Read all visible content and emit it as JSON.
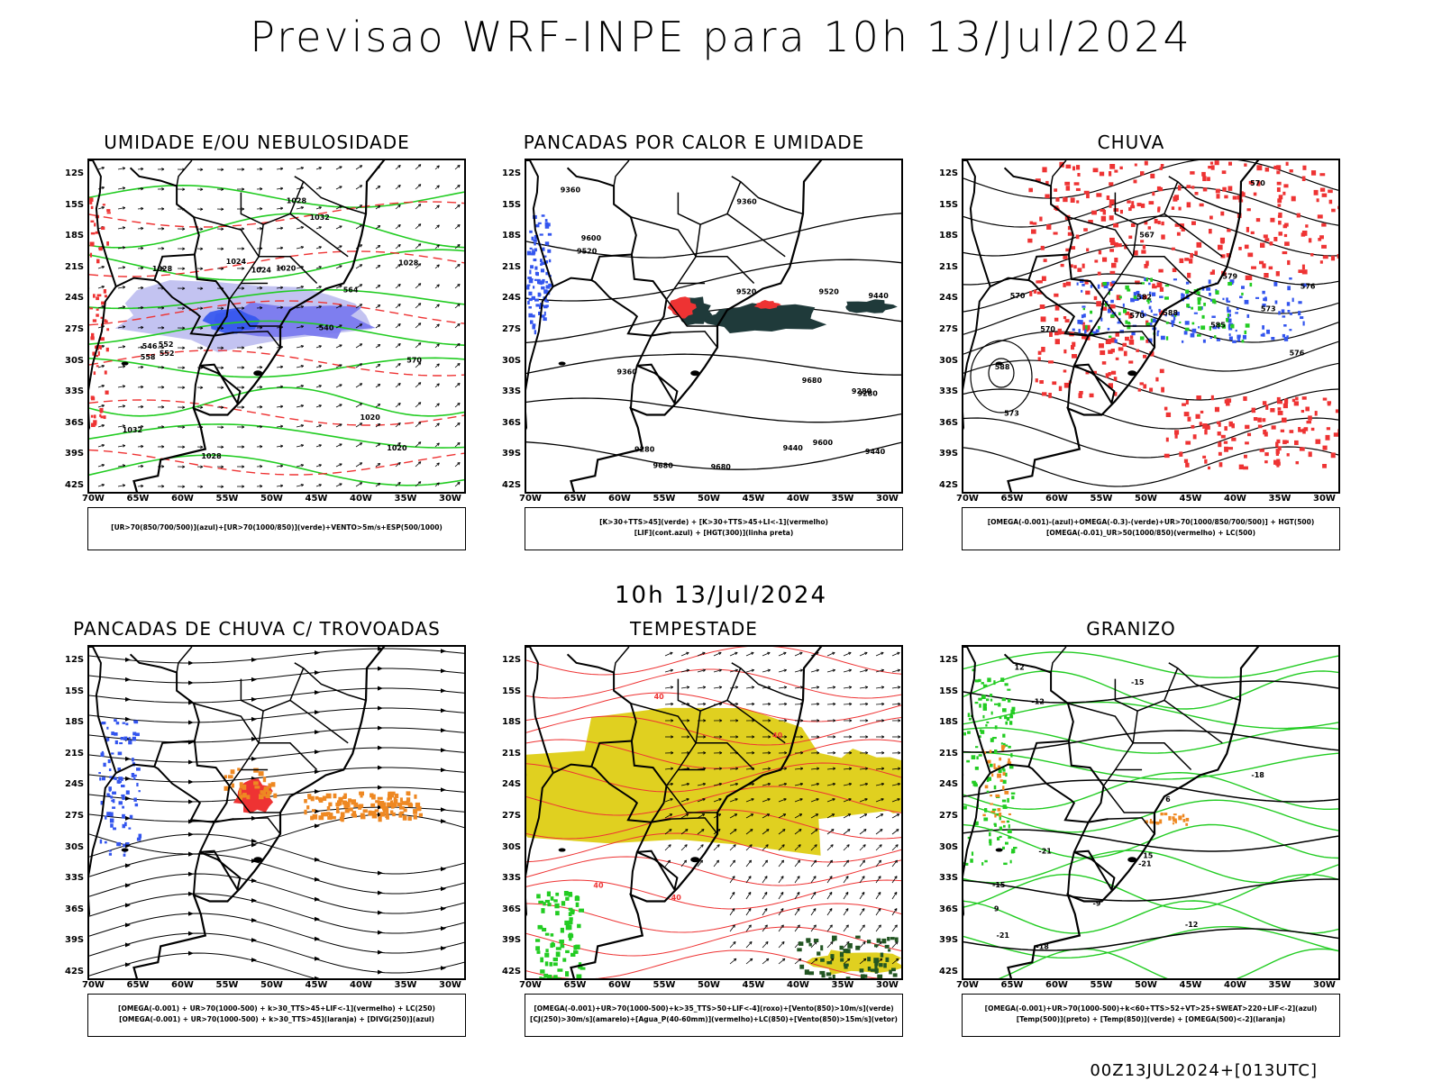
{
  "title": "Previsao WRF-INPE  para 10h 13/Jul/2024",
  "subtitle": "10h 13/Jul/2024",
  "footer": "00Z13JUL2024+[013UTC]",
  "lat_labels": [
    "12S",
    "15S",
    "18S",
    "21S",
    "24S",
    "27S",
    "30S",
    "33S",
    "36S",
    "39S",
    "42S"
  ],
  "lon_labels": [
    "70W",
    "65W",
    "60W",
    "55W",
    "50W",
    "45W",
    "40W",
    "35W",
    "30W"
  ],
  "panels": [
    {
      "title": "UMIDADE E/OU NEBULOSIDADE",
      "legend": [
        "[UR>70(850/700/500)](azul)+[UR>70(1000/850)](verde)+VENTO>5m/s+ESP(500/1000)"
      ],
      "contour_labels": [
        "1024",
        "1020",
        "1020",
        "1028",
        "1032",
        "1024",
        "1028",
        "1032",
        "1028",
        "1028",
        "1020",
        "570",
        "564",
        "558",
        "552",
        "546",
        "540",
        "552"
      ]
    },
    {
      "title": "PANCADAS POR CALOR E UMIDADE",
      "legend": [
        "[K>30+TTS>45](verde) + [K>30+TTS>45+LI<-1](vermelho)",
        "[LIF](cont.azul) + [HGT(300)](linha preta)"
      ],
      "contour_labels": [
        "9680",
        "9680",
        "9600",
        "9680",
        "9520",
        "9600",
        "9520",
        "9440",
        "9360",
        "9440",
        "9520",
        "9280",
        "9360",
        "9440",
        "9360",
        "9280",
        "9280"
      ]
    },
    {
      "title": "CHUVA",
      "legend": [
        "[OMEGA(-0.001)-(azul)+OMEGA(-0.3)-(verde)+UR>70(1000/850/700/500)] + HGT(500)",
        "[OMEGA(-0.01)_UR>50(1000/850)(vermelho) + LC(500)"
      ],
      "contour_labels": [
        "588",
        "588",
        "585",
        "582",
        "576",
        "573",
        "570",
        "567",
        "579",
        "576",
        "573",
        "570",
        "570",
        "570"
      ]
    },
    {
      "title": "PANCADAS DE CHUVA C/ TROVOADAS",
      "legend": [
        "[OMEGA(-0.001) + UR>70(1000-500) + k>30_TTS>45+LIF<-1](vermelho) + LC(250)",
        "[OMEGA(-0.001) + UR>70(1000-500) + k>30_TTS>45](laranja) + [DIVG(250)](azul)"
      ],
      "contour_labels": []
    },
    {
      "title": "TEMPESTADE",
      "legend": [
        "[OMEGA(-0.001)+UR>70(1000-500)+k>35_TTS>50+LIF<-4](roxo)+[Vento(850)>10m/s](verde)",
        "[CJ(250)>30m/s](amarelo)+[Agua_P(40-60mm)](vermelho)+LC(850)+[Vento(850)>15m/s](vetor)"
      ],
      "contour_labels": [
        "40",
        "40",
        "40",
        "40"
      ]
    },
    {
      "title": "GRANIZO",
      "legend": [
        "[OMEGA(-0.001)+UR>70(1000-500)+k<60+TTS>52+VT>25+SWEAT>220+LIF<-2](azul)",
        "[Temp(500)](preto) + [Temp(850)](verde) + [OMEGA(500)<-2](laranja)"
      ],
      "contour_labels": [
        "-9",
        "-12",
        "-12",
        "-15",
        "-15",
        "-18",
        "-21",
        "-21",
        "-18",
        "-21",
        "12",
        "15",
        "9",
        "6"
      ]
    }
  ],
  "colors": {
    "blue": "#3355ee",
    "green": "#22cc22",
    "red": "#ee3333",
    "orange": "#ee8822",
    "yellow": "#e0d020",
    "darkteal": "#1f3a3a",
    "lavender": "#b8b8ee",
    "black": "#000000"
  }
}
